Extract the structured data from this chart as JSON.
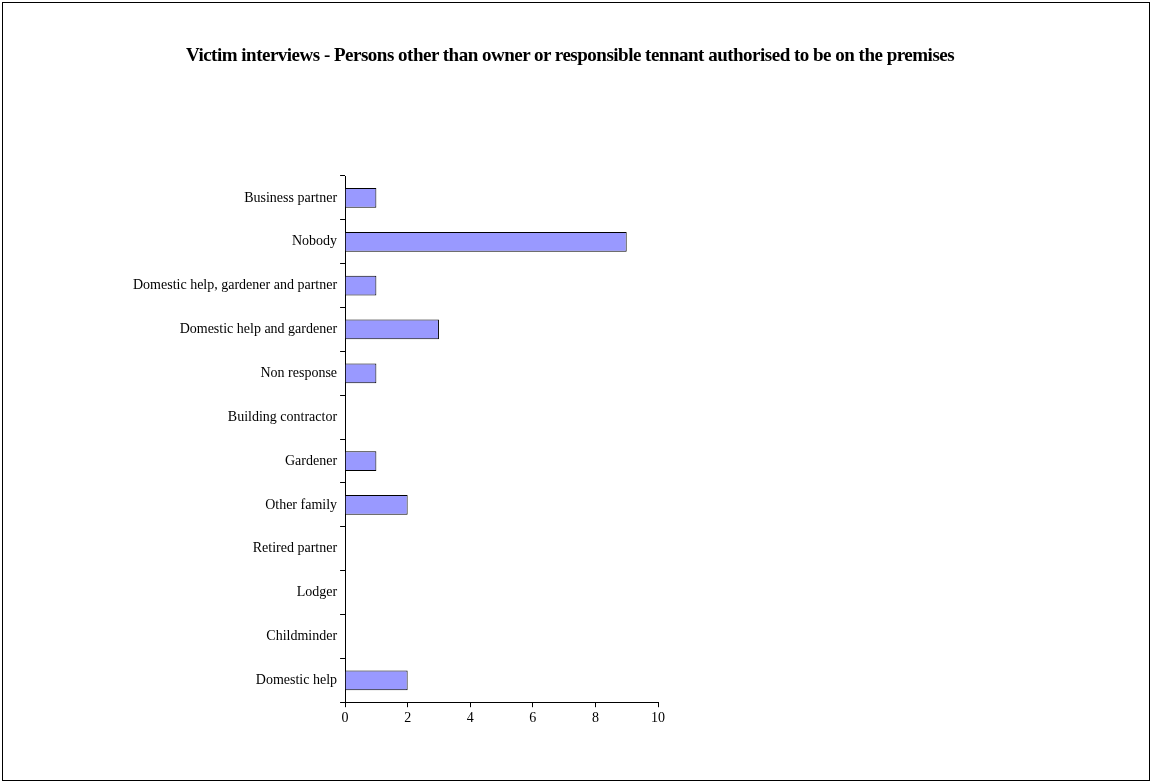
{
  "chart_data": {
    "type": "bar",
    "orientation": "horizontal",
    "title": "Victim interviews - Persons other than owner or responsible tennant authorised to be on the premises",
    "categories": [
      "Business partner",
      "Nobody",
      "Domestic help, gardener and partner",
      "Domestic help and gardener",
      "Non response",
      "Building contractor",
      "Gardener",
      "Other family",
      "Retired partner",
      "Lodger",
      "Childminder",
      "Domestic help"
    ],
    "values": [
      1,
      9,
      1,
      3,
      1,
      0,
      1,
      2,
      0,
      0,
      0,
      2
    ],
    "color": "#9999ff",
    "xlim": [
      0,
      10
    ],
    "xticks": [
      0,
      2,
      4,
      6,
      8,
      10
    ],
    "grid": false,
    "legend": false
  }
}
